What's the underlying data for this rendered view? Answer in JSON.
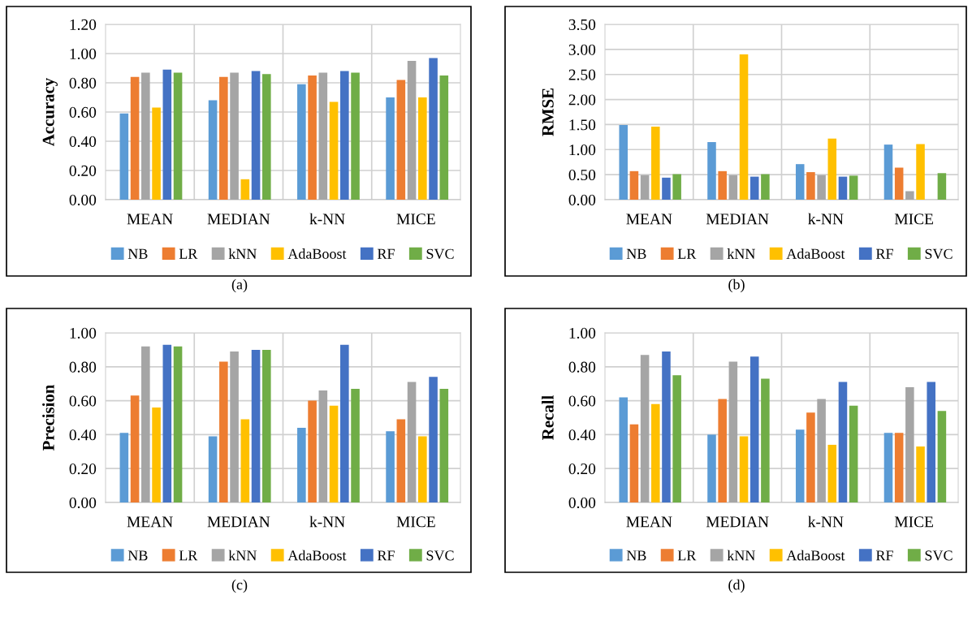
{
  "chart_data": [
    {
      "type": "bar",
      "ylabel": "Accuracy",
      "categories": [
        "MEAN",
        "MEDIAN",
        "k-NN",
        "MICE"
      ],
      "ylim": [
        0,
        1.2
      ],
      "yticks": [
        {
          "value": 0,
          "label": "0.00"
        },
        {
          "value": 0.2,
          "label": "0.20"
        },
        {
          "value": 0.4,
          "label": "0.40"
        },
        {
          "value": 0.6,
          "label": "0.60"
        },
        {
          "value": 0.8,
          "label": "0.80"
        },
        {
          "value": 1.0,
          "label": "1.00"
        },
        {
          "value": 1.2,
          "label": "1.20"
        }
      ],
      "grid": true,
      "legend": "bottom",
      "annotations": [
        "(a)"
      ],
      "series": [
        {
          "name": "NB",
          "color": "#5b9bd5",
          "values": [
            0.59,
            0.68,
            0.79,
            0.7
          ]
        },
        {
          "name": "LR",
          "color": "#ed7d31",
          "values": [
            0.84,
            0.84,
            0.85,
            0.82
          ]
        },
        {
          "name": "kNN",
          "color": "#a5a5a5",
          "values": [
            0.87,
            0.87,
            0.87,
            0.95
          ]
        },
        {
          "name": "AdaBoost",
          "color": "#ffc000",
          "values": [
            0.63,
            0.14,
            0.67,
            0.7
          ]
        },
        {
          "name": "RF",
          "color": "#4472c4",
          "values": [
            0.89,
            0.88,
            0.88,
            0.97
          ]
        },
        {
          "name": "SVC",
          "color": "#70ad47",
          "values": [
            0.87,
            0.86,
            0.87,
            0.85
          ]
        }
      ]
    },
    {
      "type": "bar",
      "ylabel": "RMSE",
      "categories": [
        "MEAN",
        "MEDIAN",
        "k-NN",
        "MICE"
      ],
      "ylim": [
        0,
        3.5
      ],
      "yticks": [
        {
          "value": 0,
          "label": "0.00"
        },
        {
          "value": 0.5,
          "label": "0.50"
        },
        {
          "value": 1.0,
          "label": "1.00"
        },
        {
          "value": 1.5,
          "label": "1.50"
        },
        {
          "value": 2.0,
          "label": "2.00"
        },
        {
          "value": 2.5,
          "label": "2.50"
        },
        {
          "value": 3.0,
          "label": "3.00"
        },
        {
          "value": 3.5,
          "label": "3.50"
        }
      ],
      "grid": true,
      "legend": "bottom",
      "annotations": [
        "(b)"
      ],
      "series": [
        {
          "name": "NB",
          "color": "#5b9bd5",
          "values": [
            1.49,
            1.15,
            0.71,
            1.1
          ]
        },
        {
          "name": "LR",
          "color": "#ed7d31",
          "values": [
            0.57,
            0.57,
            0.55,
            0.64
          ]
        },
        {
          "name": "kNN",
          "color": "#a5a5a5",
          "values": [
            0.49,
            0.49,
            0.49,
            0.17
          ]
        },
        {
          "name": "AdaBoost",
          "color": "#ffc000",
          "values": [
            1.46,
            2.9,
            1.22,
            1.11
          ]
        },
        {
          "name": "RF",
          "color": "#4472c4",
          "values": [
            0.44,
            0.46,
            0.46,
            null
          ]
        },
        {
          "name": "SVC",
          "color": "#70ad47",
          "values": [
            0.51,
            0.51,
            0.48,
            0.53
          ]
        }
      ]
    },
    {
      "type": "bar",
      "ylabel": "Precision",
      "categories": [
        "MEAN",
        "MEDIAN",
        "k-NN",
        "MICE"
      ],
      "ylim": [
        0,
        1.0
      ],
      "yticks": [
        {
          "value": 0,
          "label": "0.00"
        },
        {
          "value": 0.2,
          "label": "0.20"
        },
        {
          "value": 0.4,
          "label": "0.40"
        },
        {
          "value": 0.6,
          "label": "0.60"
        },
        {
          "value": 0.8,
          "label": "0.80"
        },
        {
          "value": 1.0,
          "label": "1.00"
        }
      ],
      "grid": true,
      "legend": "bottom",
      "annotations": [
        "(c)"
      ],
      "series": [
        {
          "name": "NB",
          "color": "#5b9bd5",
          "values": [
            0.41,
            0.39,
            0.44,
            0.42
          ]
        },
        {
          "name": "LR",
          "color": "#ed7d31",
          "values": [
            0.63,
            0.83,
            0.6,
            0.49
          ]
        },
        {
          "name": "kNN",
          "color": "#a5a5a5",
          "values": [
            0.92,
            0.89,
            0.66,
            0.71
          ]
        },
        {
          "name": "AdaBoost",
          "color": "#ffc000",
          "values": [
            0.56,
            0.49,
            0.57,
            0.39
          ]
        },
        {
          "name": "RF",
          "color": "#4472c4",
          "values": [
            0.93,
            0.9,
            0.93,
            0.74
          ]
        },
        {
          "name": "SVC",
          "color": "#70ad47",
          "values": [
            0.92,
            0.9,
            0.67,
            0.67
          ]
        }
      ]
    },
    {
      "type": "bar",
      "ylabel": "Recall",
      "categories": [
        "MEAN",
        "MEDIAN",
        "k-NN",
        "MICE"
      ],
      "ylim": [
        0,
        1.0
      ],
      "yticks": [
        {
          "value": 0,
          "label": "0.00"
        },
        {
          "value": 0.2,
          "label": "0.20"
        },
        {
          "value": 0.4,
          "label": "0.40"
        },
        {
          "value": 0.6,
          "label": "0.60"
        },
        {
          "value": 0.8,
          "label": "0.80"
        },
        {
          "value": 1.0,
          "label": "1.00"
        }
      ],
      "grid": true,
      "legend": "bottom",
      "annotations": [
        "(d)"
      ],
      "series": [
        {
          "name": "NB",
          "color": "#5b9bd5",
          "values": [
            0.62,
            0.4,
            0.43,
            0.41
          ]
        },
        {
          "name": "LR",
          "color": "#ed7d31",
          "values": [
            0.46,
            0.61,
            0.53,
            0.41
          ]
        },
        {
          "name": "kNN",
          "color": "#a5a5a5",
          "values": [
            0.87,
            0.83,
            0.61,
            0.68
          ]
        },
        {
          "name": "AdaBoost",
          "color": "#ffc000",
          "values": [
            0.58,
            0.39,
            0.34,
            0.33
          ]
        },
        {
          "name": "RF",
          "color": "#4472c4",
          "values": [
            0.89,
            0.86,
            0.71,
            0.71
          ]
        },
        {
          "name": "SVC",
          "color": "#70ad47",
          "values": [
            0.75,
            0.73,
            0.57,
            0.54
          ]
        }
      ]
    }
  ]
}
